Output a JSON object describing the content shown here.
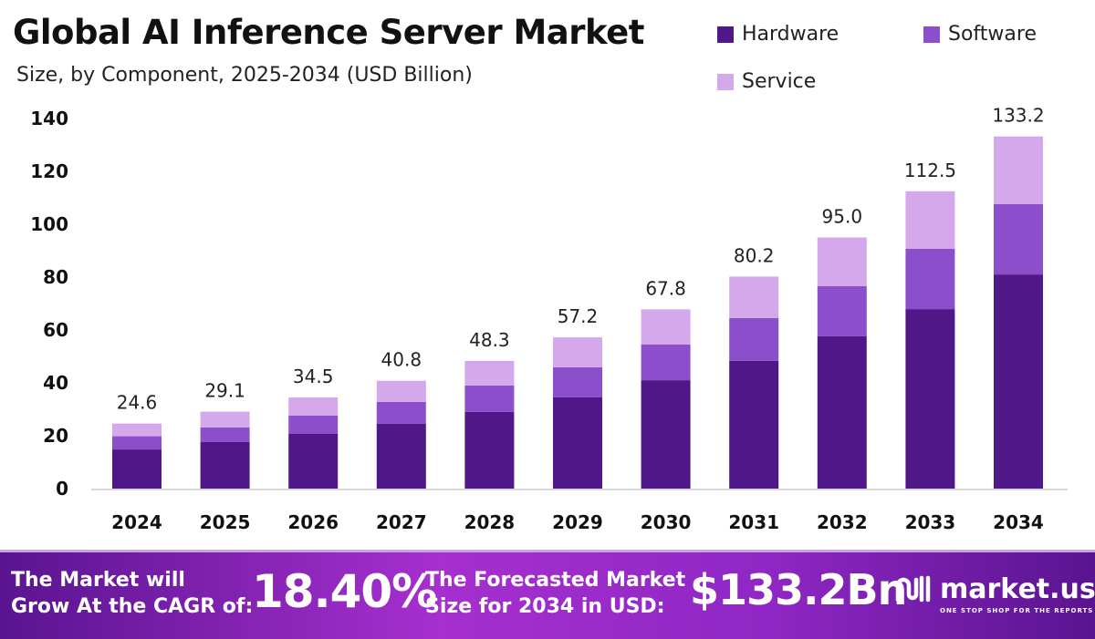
{
  "chart_data": {
    "type": "bar",
    "stacked": true,
    "title": "Global AI Inference Server Market",
    "subtitle": "Size, by Component, 2025-2034 (USD Billion)",
    "categories": [
      "2024",
      "2025",
      "2026",
      "2027",
      "2028",
      "2029",
      "2030",
      "2031",
      "2032",
      "2033",
      "2034"
    ],
    "series": [
      {
        "name": "Hardware",
        "color": "#4f1787",
        "values": [
          14.8,
          17.6,
          20.7,
          24.5,
          29.0,
          34.5,
          41.0,
          48.3,
          57.6,
          67.9,
          81.0
        ]
      },
      {
        "name": "Software",
        "color": "#8b4fcb",
        "values": [
          5.0,
          5.5,
          6.9,
          8.3,
          10.0,
          11.4,
          13.5,
          16.2,
          19.0,
          22.8,
          26.6
        ]
      },
      {
        "name": "Service",
        "color": "#d4a8ea",
        "values": [
          4.8,
          6.0,
          6.9,
          8.0,
          9.3,
          11.3,
          13.3,
          15.7,
          18.4,
          21.8,
          25.6
        ]
      }
    ],
    "totals": [
      "24.6",
      "29.1",
      "34.5",
      "40.8",
      "48.3",
      "57.2",
      "67.8",
      "80.2",
      "95.0",
      "112.5",
      "133.2"
    ],
    "yticks": [
      0,
      20,
      40,
      60,
      80,
      100,
      120,
      140
    ],
    "ylim": [
      0,
      140
    ],
    "grid": false,
    "legend_position": "top-right"
  },
  "footer": {
    "cagr_text_line1": "The Market will",
    "cagr_text_line2": "Grow At the CAGR of:",
    "cagr_value": "18.40%",
    "forecast_text_line1": "The Forecasted Market",
    "forecast_text_line2": "Size for 2034 in USD:",
    "forecast_value": "$133.2Bn",
    "logo_name": "market.us",
    "logo_tagline": "ONE STOP SHOP FOR THE REPORTS"
  }
}
